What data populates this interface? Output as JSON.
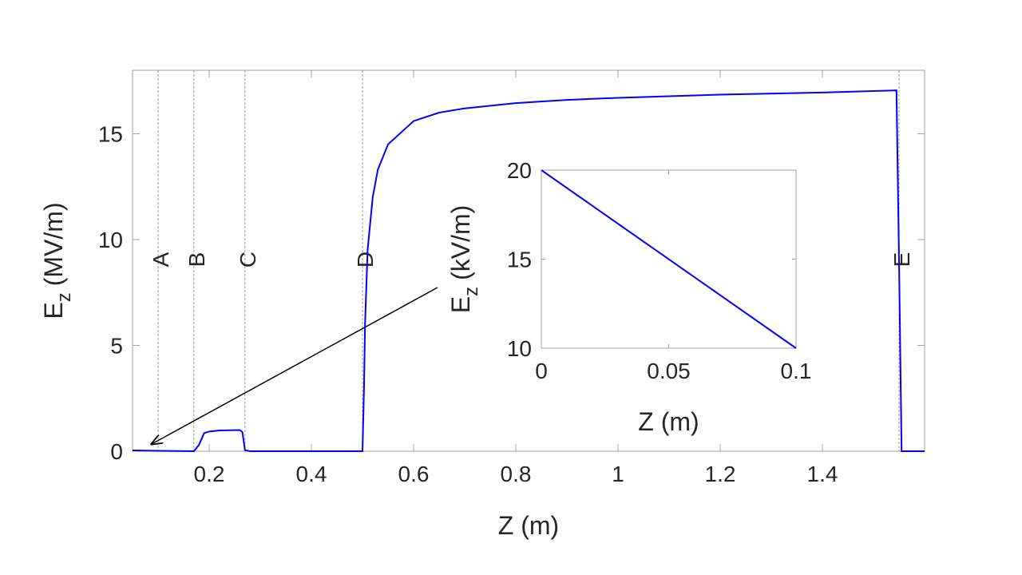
{
  "chart_data": [
    {
      "type": "line",
      "xlabel": "Z (m)",
      "ylabel": {
        "symbol": "E",
        "subscript": "z",
        "unit": "(MV/m)"
      },
      "xlim": [
        0.05,
        1.6
      ],
      "ylim": [
        0,
        18
      ],
      "xticks": [
        0.2,
        0.4,
        0.6,
        0.8,
        1,
        1.2,
        1.4
      ],
      "yticks": [
        0,
        5,
        10,
        15
      ],
      "x": [
        0.05,
        0.1,
        0.17,
        0.18,
        0.19,
        0.2,
        0.22,
        0.26,
        0.265,
        0.27,
        0.28,
        0.4,
        0.5,
        0.503,
        0.505,
        0.51,
        0.52,
        0.53,
        0.55,
        0.6,
        0.65,
        0.7,
        0.8,
        0.9,
        1.0,
        1.2,
        1.4,
        1.545,
        1.55,
        1.555,
        1.6
      ],
      "series": [
        {
          "color": "#0000ff",
          "values": [
            0.04,
            0.02,
            0,
            0.3,
            0.85,
            0.93,
            0.98,
            1.0,
            0.9,
            0.05,
            0,
            0,
            0,
            3,
            6,
            9.5,
            12,
            13.3,
            14.5,
            15.6,
            16.0,
            16.2,
            16.45,
            16.6,
            16.7,
            16.85,
            16.95,
            17.05,
            9,
            0,
            0
          ]
        }
      ],
      "vlines": [
        {
          "label": "A",
          "x": 0.1
        },
        {
          "label": "B",
          "x": 0.17
        },
        {
          "label": "C",
          "x": 0.27
        },
        {
          "label": "D",
          "x": 0.5
        },
        {
          "label": "E",
          "x": 1.55
        }
      ]
    },
    {
      "type": "line",
      "xlabel": "Z (m)",
      "ylabel": {
        "symbol": "E",
        "subscript": "z",
        "unit": "(kV/m)"
      },
      "xlim": [
        0,
        0.1
      ],
      "ylim": [
        10,
        20
      ],
      "xticks": [
        0,
        0.05,
        0.1
      ],
      "yticks": [
        10,
        15,
        20
      ],
      "x": [
        0,
        0.1
      ],
      "series": [
        {
          "color": "#0000ff",
          "values": [
            20,
            10
          ]
        }
      ]
    }
  ]
}
